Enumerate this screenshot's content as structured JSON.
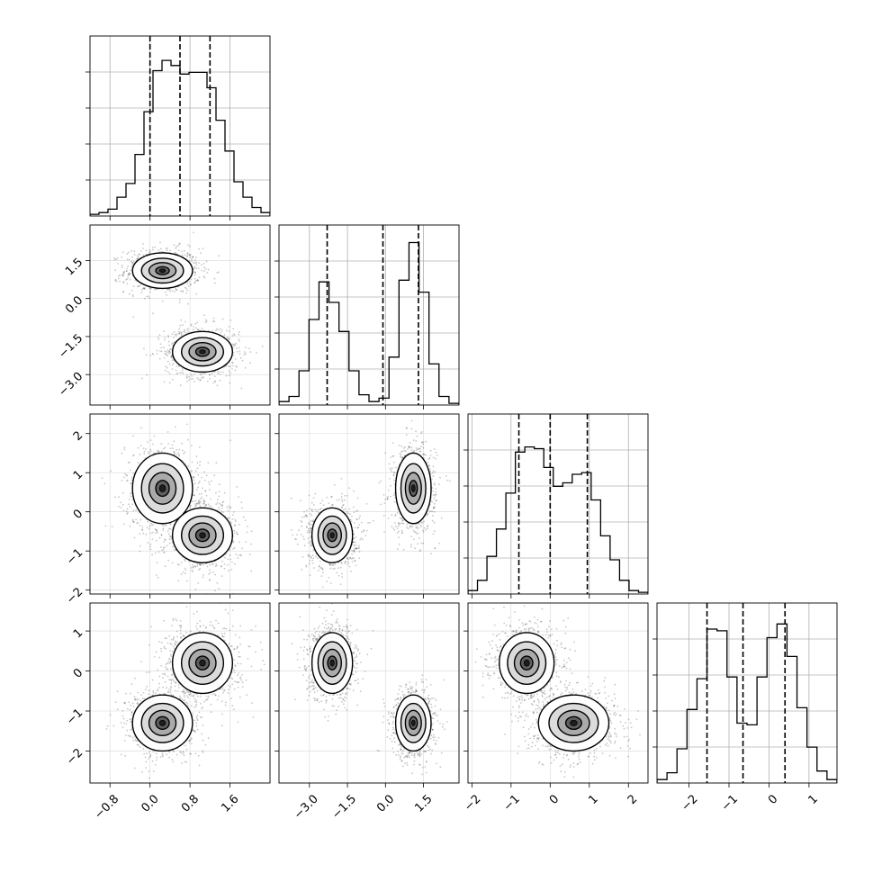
{
  "chart_data": {
    "type": "corner",
    "grid": true,
    "parameters": [
      {
        "range": [
          -1.2,
          2.4
        ],
        "ticks": [
          -0.8,
          0.0,
          0.8,
          1.6
        ],
        "tick_labels": [
          "−0.8",
          "0.0",
          "0.8",
          "1.6"
        ],
        "quantiles": [
          0.0,
          0.6,
          1.2
        ]
      },
      {
        "range": [
          -4.2,
          2.9
        ],
        "ticks": [
          -3.0,
          -1.5,
          0.0,
          1.5
        ],
        "tick_labels": [
          "−3.0",
          "−1.5",
          "0.0",
          "1.5"
        ],
        "quantiles": [
          -2.3,
          -0.1,
          1.3
        ]
      },
      {
        "range": [
          -2.1,
          2.5
        ],
        "ticks": [
          -2,
          -1,
          0,
          1,
          2
        ],
        "tick_labels": [
          "−2",
          "−1",
          "0",
          "1",
          "2"
        ],
        "quantiles": [
          -0.8,
          0.0,
          0.95
        ]
      },
      {
        "range": [
          -2.8,
          1.7
        ],
        "ticks": [
          -2,
          -1,
          0,
          1
        ],
        "tick_labels": [
          "−2",
          "−1",
          "0",
          "1"
        ],
        "quantiles": [
          -1.55,
          -0.65,
          0.4
        ]
      }
    ],
    "histograms": [
      [
        0.01,
        0.02,
        0.04,
        0.11,
        0.19,
        0.36,
        0.61,
        0.85,
        0.91,
        0.88,
        0.83,
        0.84,
        0.84,
        0.75,
        0.56,
        0.38,
        0.2,
        0.11,
        0.05,
        0.02
      ],
      [
        0.02,
        0.05,
        0.2,
        0.5,
        0.72,
        0.6,
        0.43,
        0.2,
        0.06,
        0.02,
        0.04,
        0.28,
        0.73,
        0.95,
        0.66,
        0.24,
        0.05,
        0.01
      ],
      [
        0.02,
        0.08,
        0.22,
        0.38,
        0.59,
        0.83,
        0.86,
        0.85,
        0.74,
        0.63,
        0.65,
        0.7,
        0.71,
        0.55,
        0.34,
        0.2,
        0.08,
        0.02,
        0.01
      ],
      [
        0.02,
        0.06,
        0.2,
        0.43,
        0.61,
        0.9,
        0.89,
        0.62,
        0.35,
        0.34,
        0.62,
        0.85,
        0.93,
        0.74,
        0.44,
        0.21,
        0.07,
        0.02
      ]
    ],
    "clusters": [
      {
        "mean": [
          0.25,
          1.1,
          0.6,
          -1.3
        ],
        "sd": [
          0.3,
          0.35,
          0.45,
          0.35
        ]
      },
      {
        "mean": [
          1.05,
          -2.1,
          -0.6,
          0.2
        ],
        "sd": [
          0.3,
          0.4,
          0.35,
          0.38
        ]
      }
    ]
  }
}
